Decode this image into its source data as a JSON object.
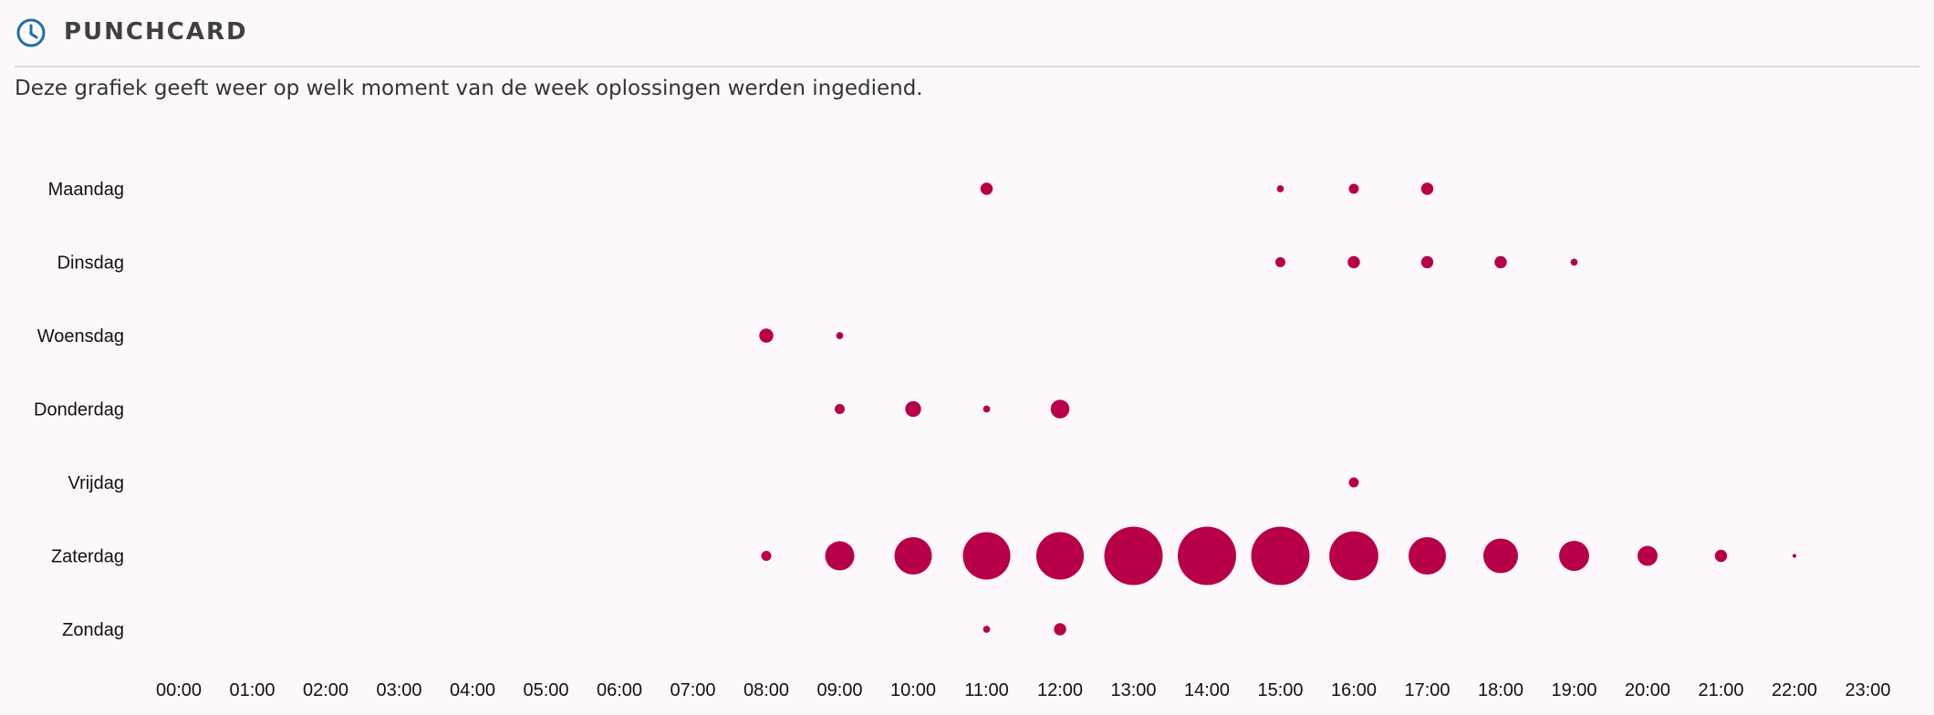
{
  "header": {
    "title": "PUNCHCARD",
    "icon": "clock-icon",
    "icon_color": "#1f6fa8"
  },
  "description": "Deze grafiek geeft weer op welk moment van de week oplossingen werden ingediend.",
  "chart_data": {
    "type": "scatter",
    "title": "",
    "xlabel": "",
    "ylabel": "",
    "dot_color": "#b80048",
    "grid": false,
    "days": [
      "Maandag",
      "Dinsdag",
      "Woensdag",
      "Donderdag",
      "Vrijdag",
      "Zaterdag",
      "Zondag"
    ],
    "hours": [
      "00:00",
      "01:00",
      "02:00",
      "03:00",
      "04:00",
      "05:00",
      "06:00",
      "07:00",
      "08:00",
      "09:00",
      "10:00",
      "11:00",
      "12:00",
      "13:00",
      "14:00",
      "15:00",
      "16:00",
      "17:00",
      "18:00",
      "19:00",
      "20:00",
      "21:00",
      "22:00",
      "23:00"
    ],
    "points": [
      {
        "day": "Maandag",
        "hour": "11:00",
        "value": 3
      },
      {
        "day": "Maandag",
        "hour": "15:00",
        "value": 1
      },
      {
        "day": "Maandag",
        "hour": "16:00",
        "value": 2
      },
      {
        "day": "Maandag",
        "hour": "17:00",
        "value": 3
      },
      {
        "day": "Dinsdag",
        "hour": "15:00",
        "value": 2
      },
      {
        "day": "Dinsdag",
        "hour": "16:00",
        "value": 3
      },
      {
        "day": "Dinsdag",
        "hour": "17:00",
        "value": 3
      },
      {
        "day": "Dinsdag",
        "hour": "18:00",
        "value": 3
      },
      {
        "day": "Dinsdag",
        "hour": "19:00",
        "value": 1
      },
      {
        "day": "Woensdag",
        "hour": "08:00",
        "value": 4
      },
      {
        "day": "Woensdag",
        "hour": "09:00",
        "value": 1
      },
      {
        "day": "Donderdag",
        "hour": "09:00",
        "value": 2
      },
      {
        "day": "Donderdag",
        "hour": "10:00",
        "value": 5
      },
      {
        "day": "Donderdag",
        "hour": "11:00",
        "value": 1
      },
      {
        "day": "Donderdag",
        "hour": "12:00",
        "value": 7
      },
      {
        "day": "Vrijdag",
        "hour": "16:00",
        "value": 2
      },
      {
        "day": "Zaterdag",
        "hour": "08:00",
        "value": 2
      },
      {
        "day": "Zaterdag",
        "hour": "09:00",
        "value": 17
      },
      {
        "day": "Zaterdag",
        "hour": "10:00",
        "value": 28
      },
      {
        "day": "Zaterdag",
        "hour": "11:00",
        "value": 45
      },
      {
        "day": "Zaterdag",
        "hour": "12:00",
        "value": 45
      },
      {
        "day": "Zaterdag",
        "hour": "13:00",
        "value": 68
      },
      {
        "day": "Zaterdag",
        "hour": "14:00",
        "value": 68
      },
      {
        "day": "Zaterdag",
        "hour": "15:00",
        "value": 68
      },
      {
        "day": "Zaterdag",
        "hour": "16:00",
        "value": 48
      },
      {
        "day": "Zaterdag",
        "hour": "17:00",
        "value": 28
      },
      {
        "day": "Zaterdag",
        "hour": "18:00",
        "value": 24
      },
      {
        "day": "Zaterdag",
        "hour": "19:00",
        "value": 18
      },
      {
        "day": "Zaterdag",
        "hour": "20:00",
        "value": 8
      },
      {
        "day": "Zaterdag",
        "hour": "21:00",
        "value": 3
      },
      {
        "day": "Zaterdag",
        "hour": "22:00",
        "value": 0.3
      },
      {
        "day": "Zondag",
        "hour": "11:00",
        "value": 1
      },
      {
        "day": "Zondag",
        "hour": "12:00",
        "value": 3
      }
    ]
  }
}
